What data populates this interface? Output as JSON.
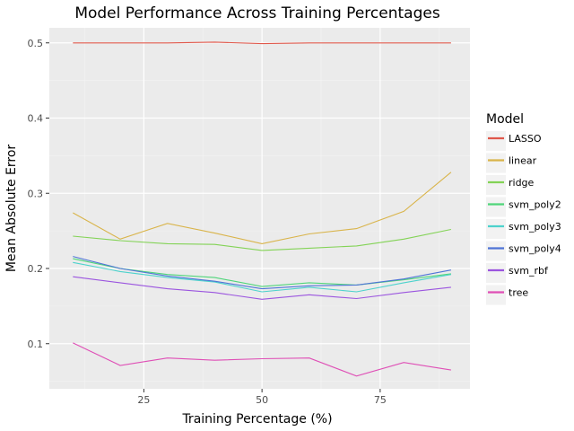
{
  "chart_data": {
    "type": "line",
    "title": "Model Performance Across Training Percentages",
    "xlabel": "Training Percentage (%)",
    "ylabel": "Mean Absolute Error",
    "xlim": [
      5,
      94
    ],
    "ylim": [
      0.04,
      0.52
    ],
    "xticks": [
      25,
      50,
      75
    ],
    "yticks": [
      0.1,
      0.2,
      0.3,
      0.4,
      0.5
    ],
    "ytick_labels": [
      "0.1",
      "0.2",
      "0.3",
      "0.4",
      "0.5"
    ],
    "grid": true,
    "legend_title": "Model",
    "legend_position": "right",
    "x": [
      10,
      20,
      30,
      40,
      50,
      60,
      70,
      80,
      90
    ],
    "series": [
      {
        "name": "LASSO",
        "color": "#e0584b",
        "values": [
          0.5,
          0.5,
          0.5,
          0.501,
          0.499,
          0.5,
          0.5,
          0.5,
          0.5
        ]
      },
      {
        "name": "linear",
        "color": "#d9b44a",
        "values": [
          0.274,
          0.239,
          0.26,
          0.247,
          0.233,
          0.246,
          0.253,
          0.276,
          0.328
        ]
      },
      {
        "name": "ridge",
        "color": "#83d356",
        "values": [
          0.243,
          0.237,
          0.233,
          0.232,
          0.224,
          0.227,
          0.23,
          0.239,
          0.252
        ]
      },
      {
        "name": "svm_poly2",
        "color": "#4fd57a",
        "values": [
          0.213,
          0.2,
          0.192,
          0.188,
          0.176,
          0.181,
          0.178,
          0.185,
          0.193
        ]
      },
      {
        "name": "svm_poly3",
        "color": "#4dd2cc",
        "values": [
          0.208,
          0.196,
          0.188,
          0.182,
          0.169,
          0.175,
          0.169,
          0.181,
          0.192
        ]
      },
      {
        "name": "svm_poly4",
        "color": "#4f74d6",
        "values": [
          0.216,
          0.2,
          0.19,
          0.183,
          0.173,
          0.177,
          0.178,
          0.186,
          0.198
        ]
      },
      {
        "name": "svm_rbf",
        "color": "#9b55df",
        "values": [
          0.189,
          0.181,
          0.173,
          0.168,
          0.159,
          0.165,
          0.16,
          0.168,
          0.175
        ]
      },
      {
        "name": "tree",
        "color": "#df4fb6",
        "values": [
          0.101,
          0.071,
          0.081,
          0.078,
          0.08,
          0.081,
          0.057,
          0.075,
          0.065
        ]
      }
    ]
  }
}
